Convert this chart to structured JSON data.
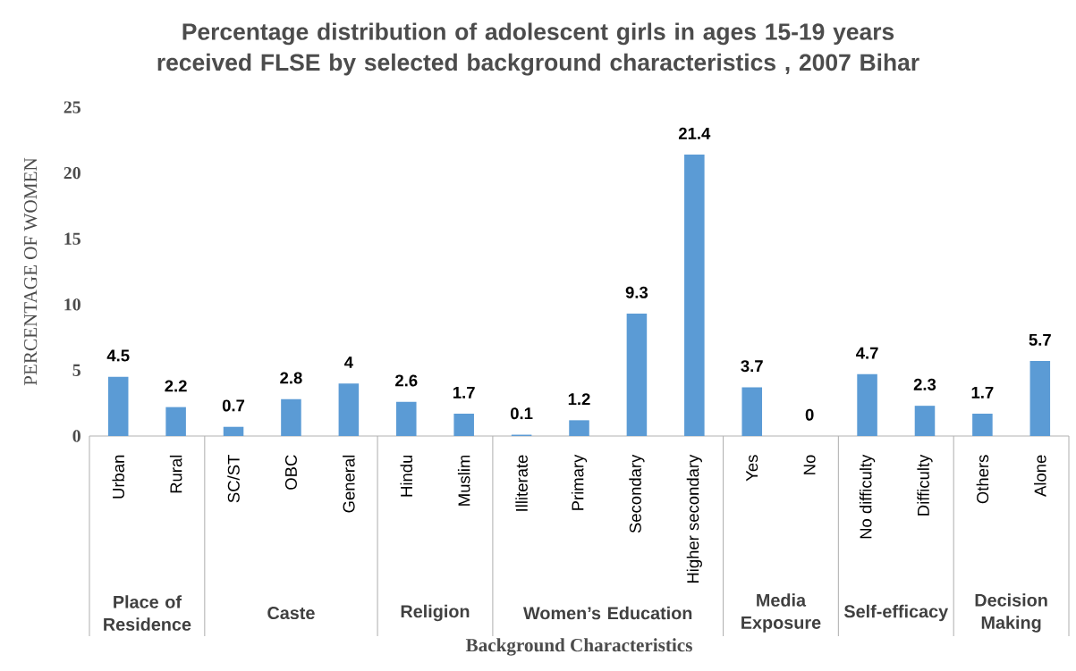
{
  "chart_data": {
    "type": "bar",
    "title": "Percentage distribution of adolescent girls in ages 15-19 years received FLSE by selected background characteristics , 2007 Bihar",
    "xlabel": "Background Characteristics",
    "ylabel": "PERCENTAGE OF WOMEN",
    "categories": [
      "Urban",
      "Rural",
      "SC/ST",
      "OBC",
      "General",
      "Hindu",
      "Muslim",
      "Illiterate",
      "Primary",
      "Secondary",
      "Higher secondary",
      "Yes",
      "No",
      "No difficulty",
      "Difficulty",
      "Others",
      "Alone"
    ],
    "values": [
      4.5,
      2.2,
      0.7,
      2.8,
      4,
      2.6,
      1.7,
      0.1,
      1.2,
      9.3,
      21.4,
      3.7,
      0,
      4.7,
      2.3,
      1.7,
      5.7
    ],
    "color": "#5b9bd5",
    "ylim": [
      0,
      25
    ],
    "yticks": [
      0,
      5,
      10,
      15,
      20,
      25
    ],
    "data_labels": true,
    "annotations": [
      "Place of Residence",
      "Caste",
      "Religion",
      "Women’s Education",
      "Media Exposure",
      "Self-efficacy",
      "Decision Making"
    ]
  }
}
